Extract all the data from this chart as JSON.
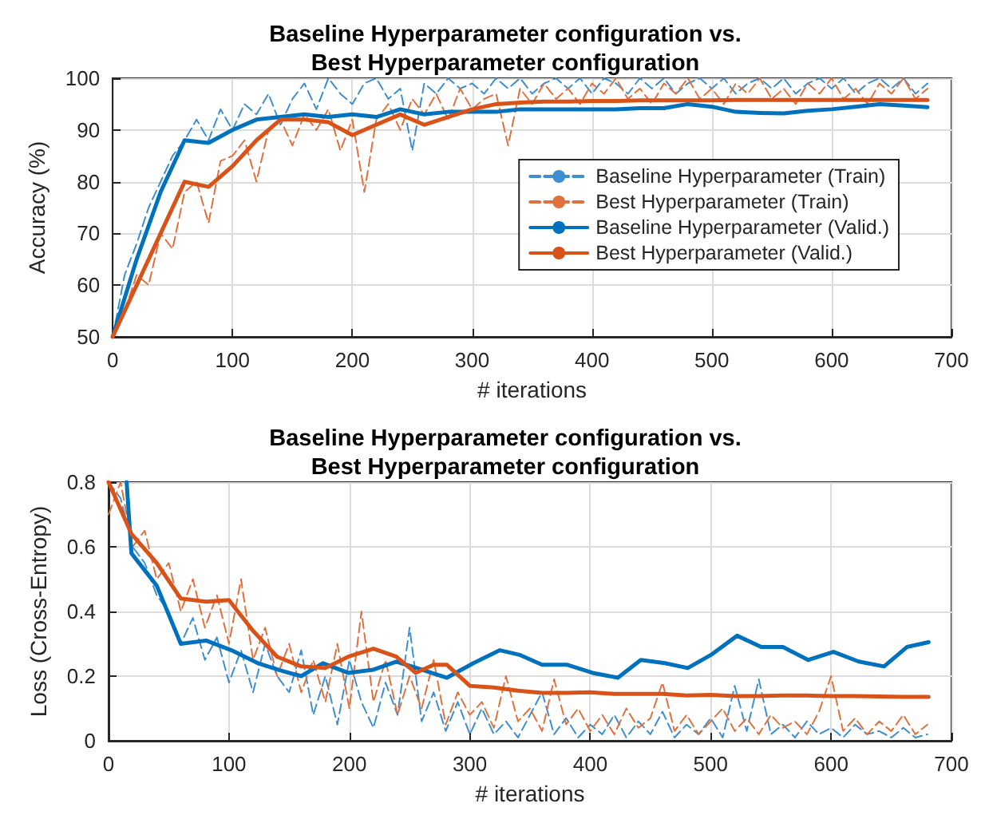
{
  "chart_data": [
    {
      "type": "line",
      "title": "Baseline Hyperparameter configuration vs.\nBest Hyperparameter configuration",
      "xlabel": "# iterations",
      "ylabel": "Accuracy (%)",
      "xlim": [
        0,
        700
      ],
      "xticks": [
        0,
        100,
        200,
        300,
        400,
        500,
        600,
        700
      ],
      "ylim": [
        50,
        100
      ],
      "yticks": [
        50,
        60,
        70,
        80,
        90,
        100
      ],
      "grid": true,
      "legend": "right",
      "marker": "none",
      "series": [
        {
          "name": "Baseline Hyperparameter (Train)",
          "color": "#3d8fd1",
          "line_style": "dashed",
          "x": [
            0,
            10,
            20,
            30,
            40,
            50,
            60,
            70,
            80,
            90,
            100,
            110,
            120,
            130,
            140,
            150,
            160,
            170,
            180,
            190,
            200,
            210,
            220,
            230,
            240,
            250,
            260,
            270,
            280,
            290,
            300,
            310,
            320,
            330,
            340,
            350,
            360,
            370,
            380,
            390,
            400,
            410,
            420,
            430,
            440,
            450,
            460,
            470,
            480,
            490,
            500,
            510,
            520,
            530,
            540,
            550,
            560,
            570,
            580,
            590,
            600,
            610,
            620,
            630,
            640,
            650,
            660,
            670,
            680
          ],
          "values": [
            50,
            62,
            68,
            75,
            80,
            85,
            88,
            92,
            88,
            94,
            90,
            95,
            93,
            97,
            91,
            96,
            99,
            94,
            100,
            97,
            95,
            99,
            100,
            96,
            98,
            86,
            99,
            97,
            100,
            98,
            99,
            97,
            100,
            98,
            100,
            97,
            99,
            100,
            98,
            100,
            97,
            100,
            99,
            97,
            100,
            98,
            100,
            97,
            99,
            100,
            98,
            100,
            97,
            99,
            100,
            98,
            100,
            97,
            99,
            100,
            98,
            100,
            97,
            99,
            100,
            98,
            100,
            97,
            99
          ]
        },
        {
          "name": "Best Hyperparameter (Train)",
          "color": "#e0703e",
          "line_style": "dashed",
          "x": [
            0,
            10,
            20,
            30,
            40,
            50,
            60,
            70,
            80,
            90,
            100,
            110,
            120,
            130,
            140,
            150,
            160,
            170,
            180,
            190,
            200,
            210,
            220,
            230,
            240,
            250,
            260,
            270,
            280,
            290,
            300,
            310,
            320,
            330,
            340,
            350,
            360,
            370,
            380,
            390,
            400,
            410,
            420,
            430,
            440,
            450,
            460,
            470,
            480,
            490,
            500,
            510,
            520,
            530,
            540,
            550,
            560,
            570,
            580,
            590,
            600,
            610,
            620,
            630,
            640,
            650,
            660,
            670,
            680
          ],
          "values": [
            50,
            55,
            62,
            60,
            70,
            67,
            78,
            80,
            72,
            84,
            85,
            88,
            80,
            90,
            92,
            87,
            93,
            90,
            94,
            86,
            92,
            78,
            92,
            95,
            90,
            96,
            93,
            97,
            92,
            98,
            94,
            96,
            97,
            87,
            98,
            95,
            99,
            96,
            98,
            95,
            99,
            97,
            100,
            96,
            98,
            95,
            99,
            97,
            100,
            96,
            98,
            95,
            99,
            97,
            100,
            96,
            98,
            95,
            99,
            97,
            100,
            96,
            98,
            95,
            99,
            97,
            100,
            96,
            98
          ]
        },
        {
          "name": "Baseline Hyperparameter (Valid.)",
          "color": "#0072bd",
          "line_style": "solid",
          "x": [
            0,
            20,
            40,
            60,
            80,
            100,
            120,
            140,
            160,
            180,
            200,
            220,
            240,
            260,
            280,
            300,
            320,
            340,
            360,
            380,
            400,
            420,
            440,
            460,
            480,
            500,
            520,
            540,
            560,
            580,
            600,
            620,
            640,
            660,
            680
          ],
          "values": [
            50,
            65,
            78,
            88,
            87.5,
            90,
            92,
            92.5,
            93,
            92.5,
            93,
            92.5,
            94,
            93,
            93.5,
            93.5,
            93.5,
            94,
            94,
            94,
            94,
            94,
            94.2,
            94.2,
            95,
            94.5,
            93.5,
            93.3,
            93.2,
            93.7,
            94,
            94.5,
            95,
            94.7,
            94.4
          ]
        },
        {
          "name": "Best Hyperparameter (Valid.)",
          "color": "#d95319",
          "line_style": "solid",
          "x": [
            0,
            20,
            40,
            60,
            80,
            100,
            120,
            140,
            160,
            180,
            200,
            220,
            240,
            260,
            280,
            300,
            320,
            340,
            360,
            380,
            400,
            420,
            440,
            460,
            480,
            500,
            520,
            540,
            560,
            580,
            600,
            620,
            640,
            660,
            680
          ],
          "values": [
            50,
            60,
            70,
            80,
            79,
            83,
            88,
            92,
            92,
            91.5,
            89,
            91,
            93,
            91,
            92.5,
            94,
            95,
            95.3,
            95.5,
            95.5,
            95.6,
            95.6,
            95.7,
            95.7,
            95.7,
            95.7,
            95.8,
            95.8,
            95.8,
            95.8,
            95.8,
            95.8,
            95.8,
            95.8,
            95.8
          ]
        }
      ]
    },
    {
      "type": "line",
      "title": "Baseline Hyperparameter configuration vs.\nBest Hyperparameter configuration",
      "xlabel": "# iterations",
      "ylabel": "Loss (Cross-Entropy)",
      "xlim": [
        0,
        700
      ],
      "xticks": [
        0,
        100,
        200,
        300,
        400,
        500,
        600,
        700
      ],
      "ylim": [
        0,
        0.8
      ],
      "yticks": [
        0,
        0.2,
        0.4,
        0.6,
        0.8
      ],
      "grid": true,
      "legend": false,
      "marker": "none",
      "series": [
        {
          "color": "#3d8fd1",
          "line_style": "dashed",
          "x": [
            0,
            10,
            20,
            30,
            40,
            50,
            60,
            70,
            80,
            90,
            100,
            110,
            120,
            130,
            140,
            150,
            160,
            170,
            180,
            190,
            200,
            210,
            220,
            230,
            240,
            250,
            260,
            270,
            280,
            290,
            300,
            310,
            320,
            330,
            340,
            350,
            360,
            370,
            380,
            390,
            400,
            410,
            420,
            430,
            440,
            450,
            460,
            470,
            480,
            490,
            500,
            510,
            520,
            530,
            540,
            550,
            560,
            570,
            580,
            590,
            600,
            610,
            620,
            630,
            640,
            650,
            660,
            670,
            680
          ],
          "values": [
            0.8,
            0.75,
            0.6,
            0.55,
            0.45,
            0.4,
            0.3,
            0.38,
            0.25,
            0.32,
            0.18,
            0.28,
            0.15,
            0.3,
            0.2,
            0.15,
            0.28,
            0.08,
            0.2,
            0.05,
            0.25,
            0.12,
            0.04,
            0.18,
            0.08,
            0.35,
            0.06,
            0.15,
            0.03,
            0.12,
            0.02,
            0.1,
            0.02,
            0.06,
            0.01,
            0.08,
            0.15,
            0.02,
            0.07,
            0.01,
            0.05,
            0.02,
            0.08,
            0.01,
            0.06,
            0.02,
            0.09,
            0.01,
            0.05,
            0.02,
            0.07,
            0.01,
            0.17,
            0.03,
            0.19,
            0.02,
            0.05,
            0.01,
            0.06,
            0.02,
            0.04,
            0.01,
            0.05,
            0.02,
            0.03,
            0.01,
            0.04,
            0.01,
            0.02
          ]
        },
        {
          "color": "#e0703e",
          "line_style": "dashed",
          "x": [
            0,
            10,
            20,
            30,
            40,
            50,
            60,
            70,
            80,
            90,
            100,
            110,
            120,
            130,
            140,
            150,
            160,
            170,
            180,
            190,
            200,
            210,
            220,
            230,
            240,
            250,
            260,
            270,
            280,
            290,
            300,
            310,
            320,
            330,
            340,
            350,
            360,
            370,
            380,
            390,
            400,
            410,
            420,
            430,
            440,
            450,
            460,
            470,
            480,
            490,
            500,
            510,
            520,
            530,
            540,
            550,
            560,
            570,
            580,
            590,
            600,
            610,
            620,
            630,
            640,
            650,
            660,
            670,
            680
          ],
          "values": [
            0.7,
            0.8,
            0.6,
            0.65,
            0.5,
            0.55,
            0.4,
            0.5,
            0.35,
            0.45,
            0.3,
            0.5,
            0.25,
            0.35,
            0.2,
            0.3,
            0.15,
            0.25,
            0.12,
            0.3,
            0.1,
            0.4,
            0.12,
            0.25,
            0.08,
            0.2,
            0.1,
            0.25,
            0.05,
            0.15,
            0.08,
            0.12,
            0.04,
            0.2,
            0.06,
            0.1,
            0.03,
            0.19,
            0.05,
            0.1,
            0.03,
            0.08,
            0.02,
            0.1,
            0.04,
            0.07,
            0.18,
            0.03,
            0.08,
            0.02,
            0.06,
            0.1,
            0.03,
            0.07,
            0.02,
            0.08,
            0.04,
            0.06,
            0.02,
            0.09,
            0.2,
            0.03,
            0.07,
            0.02,
            0.06,
            0.03,
            0.08,
            0.02,
            0.05
          ]
        },
        {
          "color": "#0072bd",
          "line_style": "solid",
          "x": [
            15,
            19,
            40,
            60,
            81,
            102,
            124,
            145,
            160,
            178,
            199,
            220,
            239,
            260,
            281,
            303,
            325,
            342,
            360,
            381,
            402,
            423,
            442,
            462,
            481,
            500,
            522,
            542,
            560,
            581,
            602,
            623,
            644,
            663,
            681
          ],
          "values": [
            0.8,
            0.58,
            0.48,
            0.3,
            0.31,
            0.28,
            0.24,
            0.215,
            0.2,
            0.24,
            0.21,
            0.22,
            0.245,
            0.22,
            0.195,
            0.24,
            0.28,
            0.265,
            0.235,
            0.235,
            0.21,
            0.195,
            0.25,
            0.24,
            0.225,
            0.265,
            0.325,
            0.29,
            0.29,
            0.25,
            0.275,
            0.245,
            0.23,
            0.29,
            0.305
          ]
        },
        {
          "color": "#d95319",
          "line_style": "solid",
          "x": [
            0,
            19,
            40,
            60,
            81,
            100,
            120,
            140,
            160,
            180,
            199,
            220,
            239,
            255,
            270,
            281,
            300,
            320,
            340,
            360,
            380,
            400,
            420,
            440,
            460,
            480,
            500,
            520,
            540,
            560,
            580,
            600,
            620,
            640,
            660,
            681
          ],
          "values": [
            0.8,
            0.64,
            0.55,
            0.44,
            0.43,
            0.435,
            0.34,
            0.26,
            0.23,
            0.225,
            0.26,
            0.285,
            0.26,
            0.21,
            0.235,
            0.235,
            0.17,
            0.165,
            0.155,
            0.148,
            0.148,
            0.15,
            0.145,
            0.145,
            0.145,
            0.14,
            0.142,
            0.138,
            0.138,
            0.14,
            0.14,
            0.138,
            0.138,
            0.137,
            0.136,
            0.136
          ]
        }
      ]
    }
  ]
}
